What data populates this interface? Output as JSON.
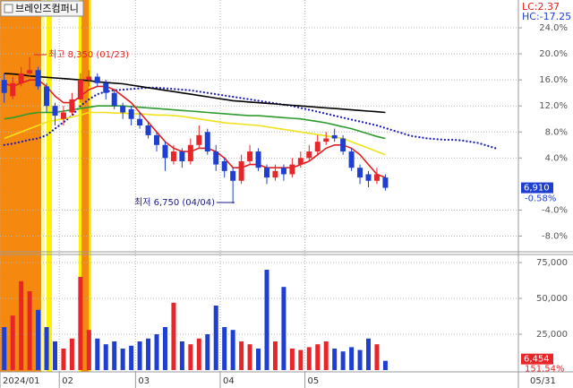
{
  "header": {
    "title": "브레인즈컴퍼니",
    "lc": "LC:2.37",
    "hc": "HC:-17.25",
    "date": "05/31"
  },
  "chart_data": [
    {
      "type": "candlestick",
      "annotations": [
        "최고 8,350 (01/23)",
        "최저 6,750 (04/04)"
      ],
      "last_label": "6,910",
      "change_label": "-0.58%",
      "up_color": "#e8262a",
      "down_color": "#1f3fd0",
      "grid": true,
      "ylim": [
        -10,
        28
      ],
      "yticks": [
        {
          "value": 24,
          "label": "24.0%"
        },
        {
          "value": 20,
          "label": "20.0%"
        },
        {
          "value": 16,
          "label": "16.0%"
        },
        {
          "value": 12,
          "label": "12.0%"
        },
        {
          "value": 8,
          "label": "8.0%"
        },
        {
          "value": 4,
          "label": "4.0%"
        },
        {
          "value": -4,
          "label": "-4.0%"
        },
        {
          "value": -8,
          "label": "-8.0%"
        }
      ],
      "categories": [
        "2024/01",
        null,
        null,
        null,
        null,
        null,
        null,
        "02",
        null,
        null,
        null,
        null,
        null,
        null,
        null,
        null,
        "03",
        null,
        null,
        null,
        null,
        null,
        null,
        null,
        null,
        null,
        "04",
        null,
        null,
        null,
        null,
        null,
        null,
        null,
        null,
        null,
        "05",
        null,
        null,
        null,
        null,
        null,
        null,
        null,
        null,
        null,
        null,
        null,
        null,
        null,
        null,
        null,
        null,
        null,
        null,
        null,
        null,
        null,
        null,
        null,
        null
      ],
      "open": [
        16,
        13.5,
        15.5,
        17,
        17.5,
        15,
        12,
        10,
        11,
        13,
        16,
        16.5,
        15.5,
        14,
        12,
        11.5,
        10,
        9,
        7.5,
        6,
        3.5,
        5,
        3.5,
        6,
        8,
        5,
        3.5,
        2,
        0.5,
        3.5,
        5,
        2.5,
        1,
        2.5,
        1.5,
        3,
        4,
        5,
        6.5,
        7.5,
        7,
        5,
        2.5,
        1.5,
        0.5,
        1,
        null,
        null,
        null,
        null,
        null,
        null,
        null,
        null,
        null,
        null,
        null,
        null,
        null,
        null,
        null
      ],
      "high": [
        17,
        16.5,
        18,
        19.5,
        18,
        15.5,
        12.5,
        12,
        14,
        17,
        17.5,
        17,
        16,
        14.5,
        12.5,
        12,
        11,
        9.5,
        8,
        6.5,
        6,
        5.5,
        7,
        9,
        8.5,
        6,
        4,
        2.5,
        4.5,
        6,
        5.5,
        3,
        3,
        3,
        4,
        5,
        6,
        7.5,
        8,
        8.5,
        7.5,
        5.5,
        3,
        2,
        2.5,
        1.5,
        null,
        null,
        null,
        null,
        null,
        null,
        null,
        null,
        null,
        null,
        null,
        null,
        null,
        null,
        null
      ],
      "low": [
        12.5,
        13,
        15,
        16.5,
        14.5,
        11,
        9,
        9,
        10.5,
        12.5,
        15,
        15,
        13,
        11.5,
        10,
        9,
        8.5,
        7,
        5,
        2,
        3,
        2.5,
        3,
        5.5,
        4.5,
        2,
        1,
        -3,
        0,
        3,
        2,
        0,
        0.5,
        0.5,
        1,
        2.5,
        3.5,
        4.5,
        6,
        6.5,
        4.5,
        2,
        0,
        -0.5,
        0,
        -1,
        null,
        null,
        null,
        null,
        null,
        null,
        null,
        null,
        null,
        null,
        null,
        null,
        null,
        null,
        null
      ],
      "close": [
        14,
        15.5,
        17,
        17.5,
        15,
        12,
        10.5,
        11,
        13,
        16,
        16.5,
        15.5,
        14,
        12,
        11,
        10,
        9,
        7.5,
        6,
        4,
        5,
        3.5,
        6,
        7.5,
        5,
        3,
        2,
        0.5,
        3.5,
        5,
        2.5,
        1,
        2,
        1.5,
        3,
        4,
        5,
        6.5,
        7,
        7,
        5,
        2.5,
        1,
        0.5,
        1.5,
        -0.58,
        null,
        null,
        null,
        null,
        null,
        null,
        null,
        null,
        null,
        null,
        null,
        null,
        null,
        null,
        null
      ],
      "series": [
        {
          "color": "#1c1cb8",
          "style": "dotted",
          "values": [
            6.0,
            6.2,
            6.5,
            6.8,
            7.0,
            7.5,
            8.5,
            9.5,
            10.5,
            12.0,
            13.0,
            13.8,
            14.2,
            14.4,
            14.5,
            14.6,
            14.7,
            14.8,
            14.8,
            14.7,
            14.6,
            14.5,
            14.4,
            14.2,
            14.0,
            13.8,
            13.6,
            13.4,
            13.2,
            13.0,
            12.8,
            12.6,
            12.4,
            12.2,
            12.0,
            11.7,
            11.4,
            11.1,
            10.8,
            10.5,
            10.2,
            9.9,
            9.6,
            9.3,
            9.0,
            8.6,
            8.2,
            7.8,
            7.4,
            7.2,
            7.0,
            6.9,
            6.8,
            6.8,
            6.7,
            6.5,
            6.3,
            5.9,
            5.5,
            null,
            null
          ]
        },
        {
          "color": "#000000",
          "style": "solid",
          "values": [
            17.0,
            16.9,
            16.8,
            16.6,
            16.5,
            16.4,
            16.3,
            16.2,
            16.1,
            16.0,
            15.9,
            15.7,
            15.6,
            15.5,
            15.4,
            15.2,
            15.0,
            14.8,
            14.6,
            14.4,
            14.2,
            14.0,
            13.8,
            13.6,
            13.4,
            13.2,
            13.0,
            12.8,
            12.7,
            12.6,
            12.5,
            12.4,
            12.3,
            12.2,
            12.1,
            12.0,
            11.9,
            11.8,
            11.7,
            11.6,
            11.5,
            11.4,
            11.3,
            11.2,
            11.1,
            11.0,
            null,
            null,
            null,
            null,
            null,
            null,
            null,
            null,
            null,
            null,
            null,
            null,
            null,
            null,
            null
          ]
        },
        {
          "color": "#2e9b2e",
          "style": "solid",
          "values": [
            10.0,
            10.2,
            10.5,
            10.8,
            11.0,
            11.0,
            11.0,
            11.2,
            11.4,
            11.6,
            11.8,
            12.0,
            12.0,
            12.0,
            12.0,
            11.9,
            11.8,
            11.7,
            11.6,
            11.5,
            11.4,
            11.3,
            11.2,
            11.1,
            11.0,
            10.9,
            10.8,
            10.7,
            10.6,
            10.5,
            10.5,
            10.4,
            10.3,
            10.2,
            10.1,
            10.0,
            9.8,
            9.6,
            9.4,
            9.1,
            8.8,
            8.5,
            8.1,
            7.7,
            7.3,
            7.0,
            null,
            null,
            null,
            null,
            null,
            null,
            null,
            null,
            null,
            null,
            null,
            null,
            null,
            null,
            null
          ]
        },
        {
          "color": "#f2e21c",
          "style": "solid",
          "values": [
            7.0,
            7.5,
            8.0,
            8.5,
            9.0,
            9.5,
            9.8,
            10.0,
            10.3,
            10.6,
            11.0,
            11.0,
            11.0,
            10.9,
            10.9,
            10.8,
            10.8,
            10.7,
            10.6,
            10.6,
            10.5,
            10.4,
            10.2,
            10.0,
            9.8,
            9.6,
            9.4,
            9.3,
            9.2,
            9.1,
            9.0,
            8.8,
            8.6,
            8.4,
            8.2,
            8.0,
            7.8,
            7.6,
            7.4,
            7.2,
            7.0,
            6.5,
            6.0,
            5.5,
            5.0,
            4.5,
            null,
            null,
            null,
            null,
            null,
            null,
            null,
            null,
            null,
            null,
            null,
            null,
            null,
            null,
            null
          ]
        },
        {
          "color": "#e02020",
          "style": "solid",
          "values": [
            15.5,
            15.0,
            15.5,
            16.0,
            16.0,
            15.0,
            13.5,
            12.5,
            12.5,
            13.5,
            14.5,
            15.0,
            15.0,
            14.5,
            13.5,
            12.5,
            11.0,
            9.5,
            8.0,
            6.5,
            5.5,
            5.0,
            5.0,
            5.5,
            5.5,
            5.0,
            4.0,
            2.5,
            2.5,
            3.0,
            3.0,
            2.5,
            2.5,
            2.5,
            2.5,
            3.0,
            3.5,
            4.5,
            5.5,
            6.0,
            6.0,
            5.5,
            4.5,
            3.0,
            1.5,
            1.0,
            null,
            null,
            null,
            null,
            null,
            null,
            null,
            null,
            null,
            null,
            null,
            null,
            null,
            null,
            null
          ]
        }
      ]
    },
    {
      "type": "bar",
      "last_label": "6,454",
      "ratio_label": "151.54%",
      "ylim": [
        0,
        80000
      ],
      "yticks": [
        {
          "value": 75000,
          "label": "75,000"
        },
        {
          "value": 50000,
          "label": "50,000"
        },
        {
          "value": 25000,
          "label": "25,000"
        }
      ],
      "values": [
        30000,
        38000,
        62000,
        55000,
        42000,
        30000,
        20000,
        15000,
        22000,
        65000,
        28000,
        22000,
        18000,
        20000,
        15000,
        17000,
        20000,
        22000,
        25000,
        30000,
        47000,
        20000,
        18000,
        22000,
        25000,
        45000,
        30000,
        28000,
        20000,
        18000,
        15000,
        70000,
        20000,
        58000,
        15000,
        14000,
        16000,
        18000,
        20000,
        15000,
        13000,
        16000,
        14000,
        22000,
        18000,
        6454,
        null,
        null,
        null,
        null,
        null,
        null,
        null,
        null,
        null,
        null,
        null,
        null,
        null,
        null,
        null
      ]
    }
  ]
}
